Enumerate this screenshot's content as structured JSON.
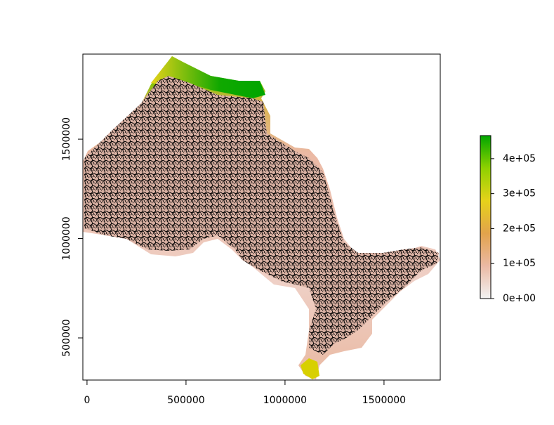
{
  "chart_data": {
    "type": "raster",
    "xlim": [
      -21000,
      1784000
    ],
    "ylim": [
      288000,
      1928000
    ],
    "xticks": [
      0,
      500000,
      1000000,
      1500000
    ],
    "yticks": [
      500000,
      1000000,
      1500000
    ],
    "legend": {
      "lim": [
        0,
        466000
      ],
      "ticks": [
        {
          "value": 0,
          "label": "0e+00"
        },
        {
          "value": 100000,
          "label": "1e+05"
        },
        {
          "value": 200000,
          "label": "2e+05"
        },
        {
          "value": 300000,
          "label": "3e+05"
        },
        {
          "value": 400000,
          "label": "4e+05"
        }
      ],
      "colors": [
        "#f2f2f2",
        "#ebb9a4",
        "#e2a34c",
        "#e6d21a",
        "#8fd100",
        "#00a600"
      ]
    },
    "point_color": "#000000"
  }
}
